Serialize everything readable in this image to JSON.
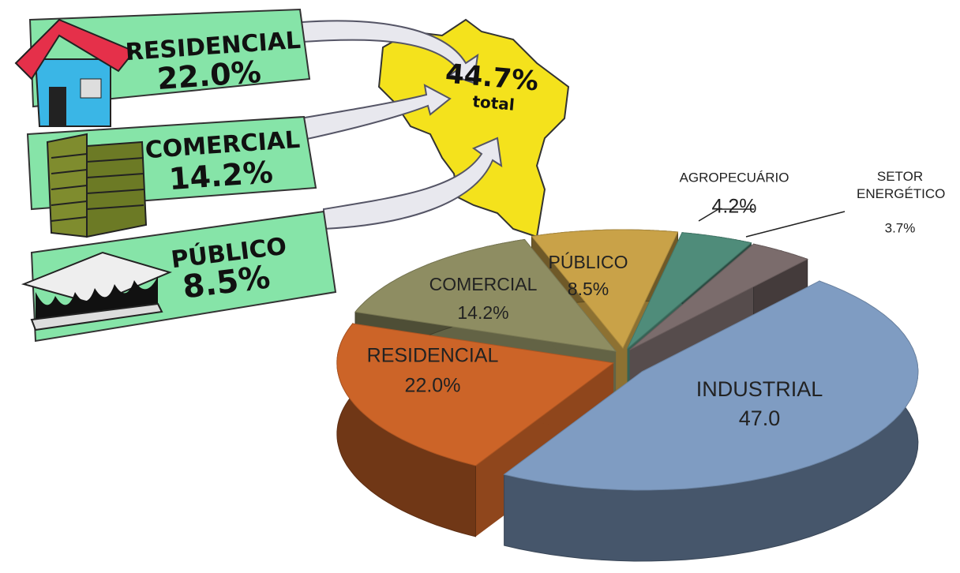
{
  "chart_data": {
    "type": "pie",
    "categories": [
      "INDUSTRIAL",
      "RESIDENCIAL",
      "COMERCIAL",
      "PÚBLICO",
      "AGROPECUÁRIO",
      "SETOR ENERGÉTICO"
    ],
    "values": [
      47.0,
      22.0,
      14.2,
      8.5,
      4.2,
      3.7
    ],
    "value_labels": [
      "47.0",
      "22.0%",
      "14.2%",
      "8.5%",
      "4.2%",
      "3.7%"
    ],
    "colors": [
      "#7f9cc2",
      "#cc6428",
      "#8e8d62",
      "#c9a248",
      "#4f8c7a",
      "#7b6c6c"
    ]
  },
  "illustration": {
    "sectors": [
      {
        "label": "RESIDENCIAL",
        "share": "22.0%"
      },
      {
        "label": "COMERCIAL",
        "share": "14.2%"
      },
      {
        "label": "PÚBLICO",
        "share": "8.5%"
      }
    ],
    "total": {
      "share": "44.7%",
      "caption": "total"
    }
  }
}
